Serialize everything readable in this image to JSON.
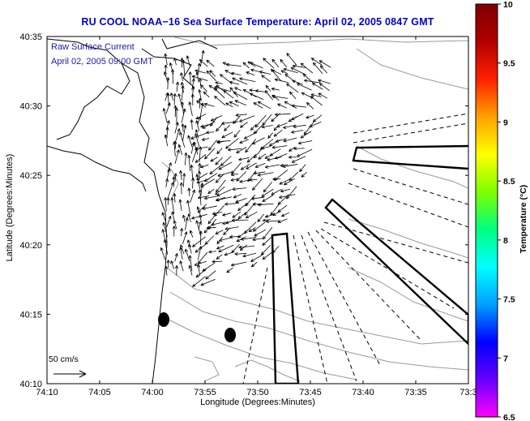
{
  "title": "RU COOL  NOAA−16  Sea Surface Temperature:  April 02, 2005 0847 GMT",
  "note": {
    "line1": "Raw Surface Current",
    "line2": "April 02, 2005 09:00 GMT"
  },
  "axes": {
    "xlabel": "Longitude (Degrees:Minutes)",
    "ylabel": "Latitude (Degrees:Minutes)",
    "x_ticks": [
      "74:10",
      "74:05",
      "74:00",
      "73:55",
      "73:50",
      "73:45",
      "73:40",
      "73:35",
      "73:3"
    ],
    "y_ticks": [
      "40:35",
      "40:30",
      "40:25",
      "40:20",
      "40:15",
      "40:10"
    ]
  },
  "scale_arrow": {
    "label": "50 cm/s"
  },
  "colorbar": {
    "label": "Temperature (°C)",
    "ticks": [
      "10",
      "9.5",
      "9",
      "8.5",
      "8",
      "7.5",
      "7",
      "6.5"
    ],
    "min": 6.5,
    "max": 10,
    "colors": [
      "#ff00ff",
      "#6600ff",
      "#0000ff",
      "#00a0ff",
      "#00ffff",
      "#00ff80",
      "#80ff00",
      "#ffff00",
      "#ffa000",
      "#ff2000",
      "#b00000",
      "#800000"
    ]
  },
  "stations": [
    "marker-1",
    "marker-2"
  ]
}
